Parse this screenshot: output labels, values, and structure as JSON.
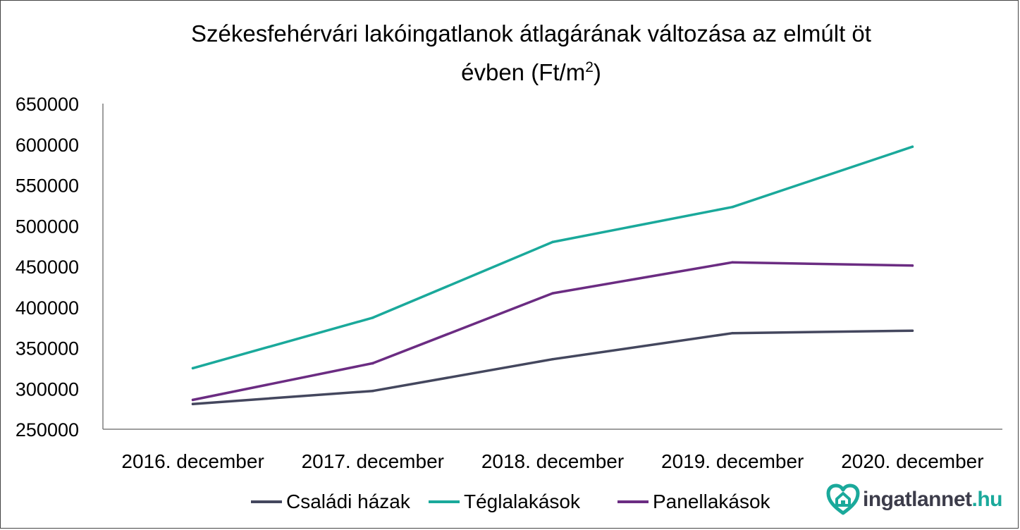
{
  "chart_data": {
    "type": "line",
    "title_line1": "Székesfehérvári lakóingatlanok átlagárának változása az elmúlt öt",
    "title_line2": "évben (Ft/m",
    "title_sup": "2",
    "title_end": ")",
    "categories": [
      "2016. december",
      "2017. december",
      "2018. december",
      "2019. december",
      "2020. december"
    ],
    "y_ticks": [
      "650000",
      "600000",
      "550000",
      "500000",
      "450000",
      "400000",
      "350000",
      "300000",
      "250000"
    ],
    "ylim": [
      250000,
      650000
    ],
    "grid": false,
    "legend_position": "bottom",
    "series": [
      {
        "name": "Családi házak",
        "color": "#44475e",
        "values": [
          281000,
          297000,
          336000,
          368000,
          371000
        ]
      },
      {
        "name": "Téglalakások",
        "color": "#1aa99b",
        "values": [
          325000,
          387000,
          480000,
          523000,
          597000
        ]
      },
      {
        "name": "Panellakások",
        "color": "#6b2c82",
        "values": [
          286000,
          331000,
          417000,
          455000,
          451000
        ]
      }
    ]
  },
  "logo": {
    "name": "ingatlannet",
    "tld": ".hu",
    "icon": "heart-house-icon",
    "color": "#1aa99b"
  }
}
